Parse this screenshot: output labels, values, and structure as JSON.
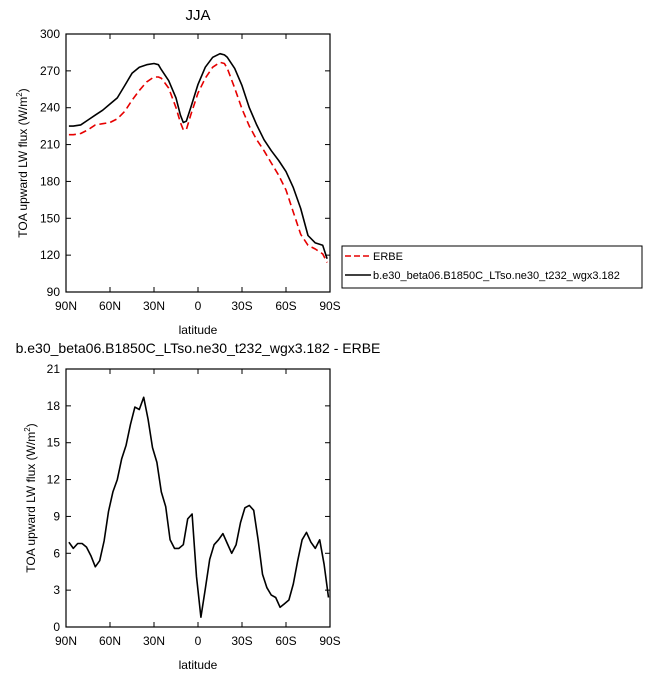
{
  "chart_data": [
    {
      "type": "line",
      "title": "JJA",
      "xlabel": "latitude",
      "ylabel": "TOA upward LW flux (W/m",
      "ylabel_sup": "2",
      "ylabel_close": ")",
      "xlim": [
        -90,
        90
      ],
      "ylim": [
        90,
        300
      ],
      "xticks": [
        -90,
        -60,
        -30,
        0,
        30,
        60,
        90
      ],
      "xtick_labels": [
        "90N",
        "60N",
        "30N",
        "0",
        "30S",
        "60S",
        "90S"
      ],
      "yticks": [
        90,
        120,
        150,
        180,
        210,
        240,
        270,
        300
      ],
      "ytick_labels": [
        "90",
        "120",
        "150",
        "180",
        "210",
        "240",
        "270",
        "300"
      ],
      "legend_position": "right",
      "series": [
        {
          "name": "ERBE",
          "color": "#e60000",
          "dash": true,
          "x": [
            -88,
            -85,
            -80,
            -75,
            -70,
            -65,
            -60,
            -55,
            -50,
            -45,
            -40,
            -35,
            -30,
            -27,
            -25,
            -20,
            -15,
            -12,
            -10,
            -8,
            -5,
            0,
            5,
            10,
            15,
            18,
            20,
            25,
            30,
            35,
            40,
            45,
            50,
            55,
            60,
            65,
            70,
            75,
            80,
            85,
            88
          ],
          "y": [
            218,
            218,
            219,
            222,
            226,
            227,
            228,
            231,
            237,
            246,
            254,
            261,
            265,
            265,
            264,
            256,
            240,
            228,
            222,
            222,
            234,
            252,
            264,
            273,
            277,
            276,
            272,
            256,
            239,
            225,
            214,
            205,
            195,
            185,
            173,
            155,
            137,
            128,
            125,
            121,
            114
          ]
        },
        {
          "name": "b.e30_beta06.B1850C_LTso.ne30_t232_wgx3.182",
          "color": "#000000",
          "dash": false,
          "x": [
            -88,
            -85,
            -80,
            -75,
            -70,
            -65,
            -60,
            -55,
            -50,
            -45,
            -40,
            -35,
            -30,
            -27,
            -25,
            -20,
            -15,
            -12,
            -10,
            -8,
            -5,
            0,
            5,
            10,
            15,
            18,
            20,
            25,
            30,
            35,
            40,
            45,
            50,
            55,
            60,
            65,
            70,
            75,
            80,
            85,
            88
          ],
          "y": [
            225,
            225,
            226,
            230,
            234,
            238,
            243,
            248,
            258,
            268,
            273,
            275,
            276,
            275,
            271,
            262,
            248,
            234,
            228,
            229,
            240,
            259,
            273,
            281,
            284,
            283,
            281,
            272,
            258,
            240,
            226,
            214,
            205,
            197,
            188,
            175,
            158,
            136,
            130,
            128,
            117
          ]
        }
      ]
    },
    {
      "type": "line",
      "title": "b.e30_beta06.B1850C_LTso.ne30_t232_wgx3.182 - ERBE",
      "xlabel": "latitude",
      "ylabel": "TOA upward LW flux (W/m",
      "ylabel_sup": "2",
      "ylabel_close": ")",
      "xlim": [
        -90,
        90
      ],
      "ylim": [
        0,
        21
      ],
      "xticks": [
        -90,
        -60,
        -30,
        0,
        30,
        60,
        90
      ],
      "xtick_labels": [
        "90N",
        "60N",
        "30N",
        "0",
        "30S",
        "60S",
        "90S"
      ],
      "yticks": [
        0,
        3,
        6,
        9,
        12,
        15,
        18,
        21
      ],
      "ytick_labels": [
        "0",
        "3",
        "6",
        "9",
        "12",
        "15",
        "18",
        "21"
      ],
      "series": [
        {
          "color": "#000000",
          "dash": false,
          "x": [
            -88,
            -85,
            -82,
            -79,
            -76,
            -73,
            -70,
            -67,
            -64,
            -61,
            -58,
            -55,
            -52,
            -49,
            -46,
            -43,
            -40,
            -37,
            -34,
            -31,
            -28,
            -25,
            -22,
            -19,
            -16,
            -13,
            -10,
            -7,
            -4,
            -1,
            2,
            5,
            8,
            11,
            14,
            17,
            20,
            23,
            26,
            29,
            32,
            35,
            38,
            41,
            44,
            47,
            50,
            53,
            56,
            59,
            62,
            65,
            68,
            71,
            74,
            77,
            80,
            83,
            86,
            89
          ],
          "y": [
            6.9,
            6.4,
            6.8,
            6.8,
            6.5,
            5.8,
            4.9,
            5.4,
            7.0,
            9.4,
            11.0,
            12.0,
            13.7,
            14.8,
            16.5,
            17.9,
            17.7,
            18.7,
            16.9,
            14.6,
            13.4,
            11.0,
            9.8,
            7.1,
            6.4,
            6.4,
            6.7,
            8.8,
            9.2,
            4.1,
            0.8,
            3.1,
            5.5,
            6.7,
            7.1,
            7.6,
            6.8,
            6.0,
            6.7,
            8.5,
            9.7,
            9.9,
            9.5,
            7.1,
            4.3,
            3.2,
            2.6,
            2.4,
            1.6,
            1.9,
            2.2,
            3.5,
            5.4,
            7.1,
            7.7,
            6.9,
            6.4,
            7.1,
            5.1,
            2.4
          ]
        }
      ]
    }
  ]
}
